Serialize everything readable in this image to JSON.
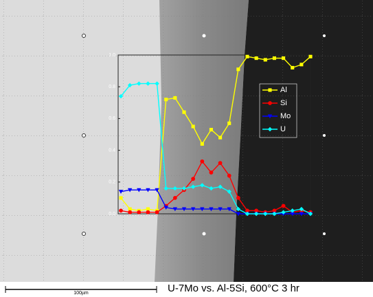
{
  "chart_data": {
    "type": "line",
    "caption": "U-7Mo vs. Al-5Si, 600°C 3 hr",
    "scale_bar": "100µm",
    "ylim": [
      0,
      1
    ],
    "yticks": [
      {
        "value": 0,
        "label": "0.0"
      },
      0.2,
      0.4,
      0.6,
      0.8,
      {
        "value": 1,
        "label": "1.0"
      }
    ],
    "legend": "upper right",
    "series": [
      {
        "name": "Al",
        "color": "#ffff00",
        "marker": "square",
        "values": [
          0.1,
          0.03,
          0.02,
          0.03,
          0.02,
          0.72,
          0.73,
          0.64,
          0.55,
          0.44,
          0.53,
          0.48,
          0.57,
          0.91,
          0.99,
          0.98,
          0.97,
          0.98,
          0.98,
          0.92,
          0.94,
          0.99
        ]
      },
      {
        "name": "Si",
        "color": "#ff0000",
        "marker": "circle",
        "values": [
          0.02,
          0.01,
          0.01,
          0.01,
          0.01,
          0.05,
          0.1,
          0.15,
          0.22,
          0.33,
          0.26,
          0.32,
          0.24,
          0.1,
          0.02,
          0.02,
          0.01,
          0.02,
          0.05,
          0.01,
          0.02,
          0.01
        ]
      },
      {
        "name": "Mo",
        "color": "#0000ff",
        "marker": "triangle-down",
        "values": [
          0.14,
          0.15,
          0.15,
          0.15,
          0.15,
          0.04,
          0.03,
          0.03,
          0.03,
          0.03,
          0.03,
          0.03,
          0.03,
          0.0,
          0.0,
          0.0,
          0.0,
          0.0,
          0.0,
          0.0,
          0.0,
          0.0
        ]
      },
      {
        "name": "U",
        "color": "#00ffff",
        "marker": "diamond",
        "values": [
          0.74,
          0.81,
          0.82,
          0.82,
          0.82,
          0.16,
          0.16,
          0.16,
          0.17,
          0.18,
          0.16,
          0.17,
          0.14,
          0.03,
          0.0,
          0.0,
          0.0,
          0.0,
          0.01,
          0.02,
          0.03,
          0.0
        ]
      }
    ]
  }
}
